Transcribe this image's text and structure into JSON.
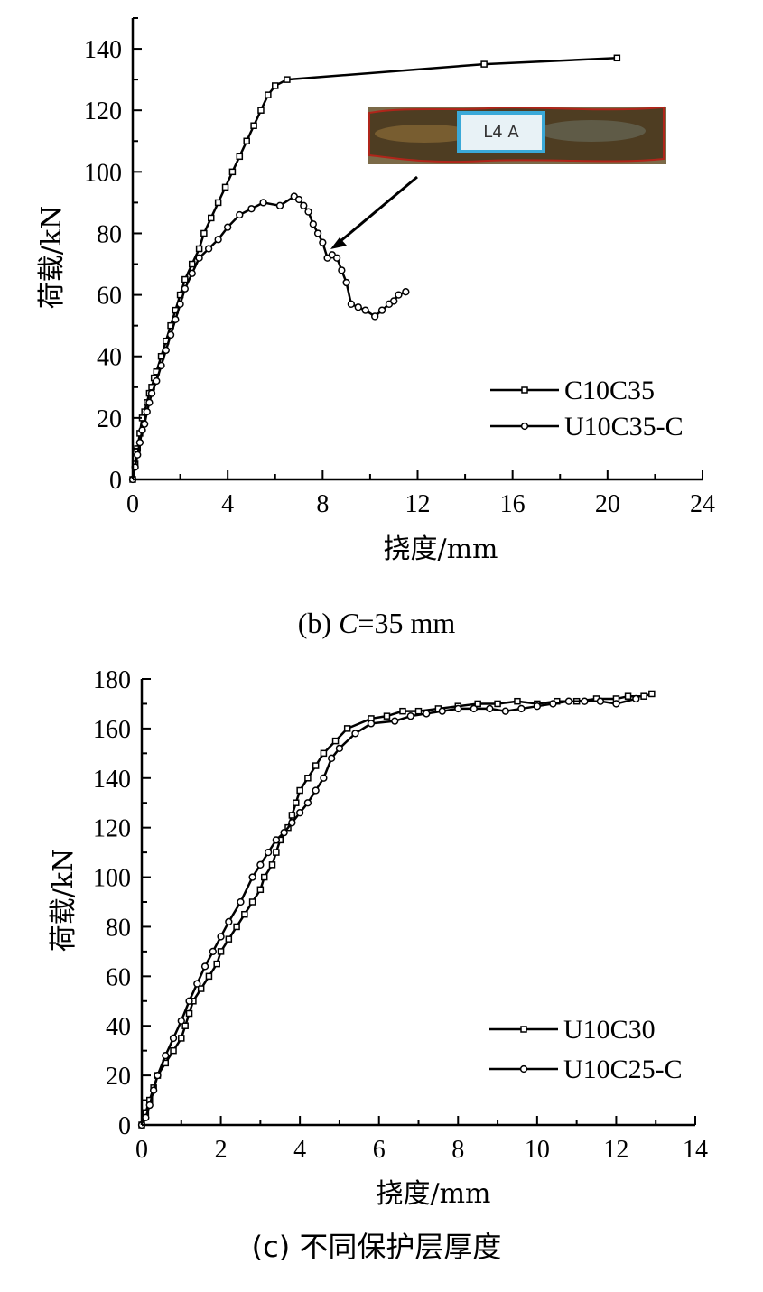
{
  "chart_data": [
    {
      "type": "line",
      "xlabel": "挠度/mm",
      "ylabel": "荷载/kN",
      "xlim": [
        0,
        24
      ],
      "ylim": [
        0,
        150
      ],
      "xticks": [
        "0",
        "4",
        "8",
        "12",
        "16",
        "20",
        "24"
      ],
      "yticks": [
        "0",
        "20",
        "40",
        "60",
        "80",
        "100",
        "120",
        "140"
      ],
      "legend_position": "bottom-right",
      "caption_prefix": "(b) ",
      "caption_var": "C",
      "caption_suffix": "=35 mm",
      "inset": {
        "kind": "photo",
        "description_text": "L4 A",
        "arrow_target": [
          8.3,
          74
        ]
      },
      "series": [
        {
          "name": "C10C35",
          "marker": "square",
          "points": [
            [
              0,
              0
            ],
            [
              0.1,
              5
            ],
            [
              0.2,
              10
            ],
            [
              0.3,
              15
            ],
            [
              0.4,
              20
            ],
            [
              0.5,
              22
            ],
            [
              0.6,
              25
            ],
            [
              0.7,
              28
            ],
            [
              0.8,
              30
            ],
            [
              0.9,
              33
            ],
            [
              1.0,
              35
            ],
            [
              1.2,
              40
            ],
            [
              1.4,
              45
            ],
            [
              1.6,
              50
            ],
            [
              1.8,
              55
            ],
            [
              2.0,
              60
            ],
            [
              2.2,
              65
            ],
            [
              2.5,
              70
            ],
            [
              2.8,
              75
            ],
            [
              3.0,
              80
            ],
            [
              3.3,
              85
            ],
            [
              3.6,
              90
            ],
            [
              3.9,
              95
            ],
            [
              4.2,
              100
            ],
            [
              4.5,
              105
            ],
            [
              4.8,
              110
            ],
            [
              5.1,
              115
            ],
            [
              5.4,
              120
            ],
            [
              5.7,
              125
            ],
            [
              6.0,
              128
            ],
            [
              6.5,
              130
            ],
            [
              14.8,
              135
            ],
            [
              20.4,
              137
            ]
          ]
        },
        {
          "name": "U10C35-C",
          "marker": "circle",
          "points": [
            [
              0,
              0
            ],
            [
              0.1,
              4
            ],
            [
              0.2,
              8
            ],
            [
              0.3,
              12
            ],
            [
              0.4,
              16
            ],
            [
              0.5,
              18
            ],
            [
              0.6,
              22
            ],
            [
              0.7,
              25
            ],
            [
              0.8,
              28
            ],
            [
              1.0,
              32
            ],
            [
              1.2,
              37
            ],
            [
              1.4,
              42
            ],
            [
              1.6,
              47
            ],
            [
              1.8,
              52
            ],
            [
              2.0,
              57
            ],
            [
              2.2,
              62
            ],
            [
              2.5,
              67
            ],
            [
              2.8,
              72
            ],
            [
              3.2,
              75
            ],
            [
              3.6,
              78
            ],
            [
              4.0,
              82
            ],
            [
              4.5,
              86
            ],
            [
              5.0,
              88
            ],
            [
              5.5,
              90
            ],
            [
              6.2,
              89
            ],
            [
              6.8,
              92
            ],
            [
              7.0,
              91
            ],
            [
              7.2,
              89
            ],
            [
              7.4,
              87
            ],
            [
              7.6,
              83
            ],
            [
              7.8,
              80
            ],
            [
              8.0,
              77
            ],
            [
              8.2,
              72
            ],
            [
              8.4,
              73
            ],
            [
              8.6,
              72
            ],
            [
              8.8,
              68
            ],
            [
              9.0,
              64
            ],
            [
              9.2,
              57
            ],
            [
              9.5,
              56
            ],
            [
              9.8,
              55
            ],
            [
              10.2,
              53
            ],
            [
              10.5,
              55
            ],
            [
              10.8,
              57
            ],
            [
              11.0,
              58
            ],
            [
              11.2,
              60
            ],
            [
              11.5,
              61
            ]
          ]
        }
      ]
    },
    {
      "type": "line",
      "xlabel": "挠度/mm",
      "ylabel": "荷载/kN",
      "xlim": [
        0,
        14
      ],
      "ylim": [
        0,
        180
      ],
      "xticks": [
        "0",
        "2",
        "4",
        "6",
        "8",
        "10",
        "12",
        "14"
      ],
      "yticks": [
        "0",
        "20",
        "40",
        "60",
        "80",
        "100",
        "120",
        "140",
        "160",
        "180"
      ],
      "legend_position": "bottom-right",
      "caption": "(c)  不同保护层厚度",
      "series": [
        {
          "name": "U10C30",
          "marker": "square",
          "points": [
            [
              0,
              0
            ],
            [
              0.1,
              5
            ],
            [
              0.2,
              10
            ],
            [
              0.3,
              15
            ],
            [
              0.4,
              20
            ],
            [
              0.6,
              25
            ],
            [
              0.8,
              30
            ],
            [
              1.0,
              35
            ],
            [
              1.1,
              40
            ],
            [
              1.2,
              45
            ],
            [
              1.3,
              50
            ],
            [
              1.5,
              55
            ],
            [
              1.7,
              60
            ],
            [
              1.9,
              65
            ],
            [
              2.0,
              70
            ],
            [
              2.2,
              75
            ],
            [
              2.4,
              80
            ],
            [
              2.6,
              85
            ],
            [
              2.8,
              90
            ],
            [
              3.0,
              95
            ],
            [
              3.1,
              100
            ],
            [
              3.3,
              105
            ],
            [
              3.4,
              110
            ],
            [
              3.5,
              115
            ],
            [
              3.7,
              120
            ],
            [
              3.8,
              125
            ],
            [
              3.9,
              130
            ],
            [
              4.0,
              135
            ],
            [
              4.2,
              140
            ],
            [
              4.4,
              145
            ],
            [
              4.6,
              150
            ],
            [
              4.9,
              155
            ],
            [
              5.2,
              160
            ],
            [
              5.8,
              164
            ],
            [
              6.2,
              165
            ],
            [
              6.6,
              167
            ],
            [
              7.0,
              167
            ],
            [
              7.5,
              168
            ],
            [
              8.0,
              169
            ],
            [
              8.5,
              170
            ],
            [
              9.0,
              170
            ],
            [
              9.5,
              171
            ],
            [
              10.0,
              170
            ],
            [
              10.5,
              171
            ],
            [
              11.0,
              171
            ],
            [
              11.5,
              172
            ],
            [
              12.0,
              172
            ],
            [
              12.3,
              173
            ],
            [
              12.7,
              173
            ],
            [
              12.9,
              174
            ]
          ]
        },
        {
          "name": "U10C25-C",
          "marker": "circle",
          "points": [
            [
              0,
              0
            ],
            [
              0.1,
              3
            ],
            [
              0.2,
              8
            ],
            [
              0.3,
              14
            ],
            [
              0.4,
              20
            ],
            [
              0.6,
              28
            ],
            [
              0.8,
              35
            ],
            [
              1.0,
              42
            ],
            [
              1.2,
              50
            ],
            [
              1.4,
              57
            ],
            [
              1.6,
              64
            ],
            [
              1.8,
              70
            ],
            [
              2.0,
              76
            ],
            [
              2.2,
              82
            ],
            [
              2.5,
              90
            ],
            [
              2.8,
              100
            ],
            [
              3.0,
              105
            ],
            [
              3.2,
              110
            ],
            [
              3.4,
              115
            ],
            [
              3.6,
              118
            ],
            [
              3.8,
              122
            ],
            [
              4.0,
              126
            ],
            [
              4.2,
              130
            ],
            [
              4.4,
              135
            ],
            [
              4.6,
              140
            ],
            [
              4.8,
              148
            ],
            [
              5.0,
              152
            ],
            [
              5.4,
              158
            ],
            [
              5.8,
              162
            ],
            [
              6.4,
              163
            ],
            [
              6.8,
              165
            ],
            [
              7.2,
              166
            ],
            [
              7.6,
              167
            ],
            [
              8.0,
              168
            ],
            [
              8.4,
              168
            ],
            [
              8.8,
              168
            ],
            [
              9.2,
              167
            ],
            [
              9.6,
              168
            ],
            [
              10.0,
              169
            ],
            [
              10.4,
              170
            ],
            [
              10.8,
              171
            ],
            [
              11.2,
              171
            ],
            [
              11.6,
              171
            ],
            [
              12.0,
              170
            ],
            [
              12.5,
              172
            ]
          ]
        }
      ]
    }
  ]
}
